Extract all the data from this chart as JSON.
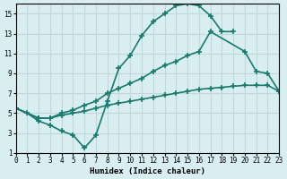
{
  "title": "",
  "xlabel": "Humidex (Indice chaleur)",
  "ylabel": "",
  "bg_color": "#d8eef0",
  "grid_color": "#c0d8da",
  "line_color": "#1a7a6e",
  "linewidth": 1.2,
  "markersize": 5,
  "ylim": [
    1,
    16
  ],
  "xlim": [
    0,
    23
  ],
  "yticks": [
    1,
    3,
    5,
    7,
    9,
    11,
    13,
    15
  ],
  "xticks": [
    0,
    1,
    2,
    3,
    4,
    5,
    6,
    7,
    8,
    9,
    10,
    11,
    12,
    13,
    14,
    15,
    16,
    17,
    18,
    19,
    20,
    21,
    22,
    23
  ],
  "line1_x": [
    0,
    1,
    2,
    3,
    4,
    5,
    6,
    7,
    8,
    9,
    10,
    11,
    12,
    13,
    14,
    15,
    16,
    17,
    18,
    19
  ],
  "line1_y": [
    5.5,
    5.0,
    4.2,
    3.8,
    3.2,
    2.8,
    1.5,
    2.8,
    6.2,
    9.5,
    10.8,
    12.8,
    14.2,
    15.0,
    15.8,
    16.0,
    15.8,
    14.8,
    13.2,
    13.2
  ],
  "line2_x": [
    0,
    2,
    3,
    4,
    5,
    6,
    7,
    8,
    9,
    10,
    11,
    12,
    13,
    14,
    15,
    16,
    17,
    20,
    21,
    22,
    23
  ],
  "line2_y": [
    5.5,
    4.5,
    4.5,
    5.0,
    5.3,
    5.8,
    6.2,
    7.0,
    7.5,
    8.0,
    8.5,
    9.2,
    9.8,
    10.2,
    10.8,
    11.2,
    13.2,
    11.2,
    9.2,
    9.0,
    7.2
  ],
  "line3_x": [
    0,
    2,
    3,
    4,
    5,
    6,
    7,
    8,
    9,
    10,
    11,
    12,
    13,
    14,
    15,
    16,
    17,
    18,
    19,
    20,
    21,
    22,
    23
  ],
  "line3_y": [
    5.5,
    4.5,
    4.5,
    4.8,
    5.0,
    5.2,
    5.5,
    5.8,
    6.0,
    6.2,
    6.4,
    6.6,
    6.8,
    7.0,
    7.2,
    7.4,
    7.5,
    7.6,
    7.7,
    7.8,
    7.8,
    7.8,
    7.2
  ]
}
